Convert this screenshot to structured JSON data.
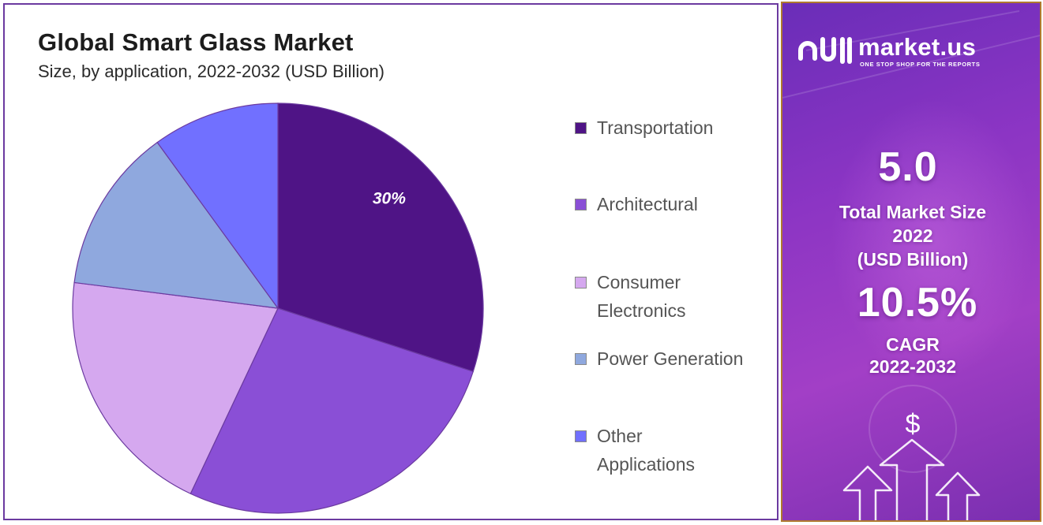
{
  "chart_data": {
    "type": "pie",
    "title": "Global Smart Glass Market",
    "subtitle": "Size, by application, 2022-2032 (USD Billion)",
    "legend_position": "right",
    "slices": [
      {
        "label": "Transportation",
        "value": 30,
        "color": "#4f1486",
        "data_label": "30%"
      },
      {
        "label": "Architectural",
        "value": 27,
        "color": "#8a4fd6",
        "data_label": ""
      },
      {
        "label": "Consumer\nElectronics",
        "value": 20,
        "color": "#d5a8ef",
        "data_label": ""
      },
      {
        "label": "Power Generation",
        "value": 13,
        "color": "#8fa8de",
        "data_label": ""
      },
      {
        "label": "Other\nApplications",
        "value": 10,
        "color": "#7170ff",
        "data_label": ""
      }
    ]
  },
  "side_panel": {
    "brand_name": "market.us",
    "brand_tagline": "ONE STOP SHOP FOR THE REPORTS",
    "market_size_value": "5.0",
    "market_size_label_line1": "Total Market Size",
    "market_size_label_line2": "2022",
    "market_size_label_line3": "(USD Billion)",
    "cagr_value": "10.5%",
    "cagr_label_line1": "CAGR",
    "cagr_label_line2": "2022-2032",
    "currency_symbol": "$"
  }
}
